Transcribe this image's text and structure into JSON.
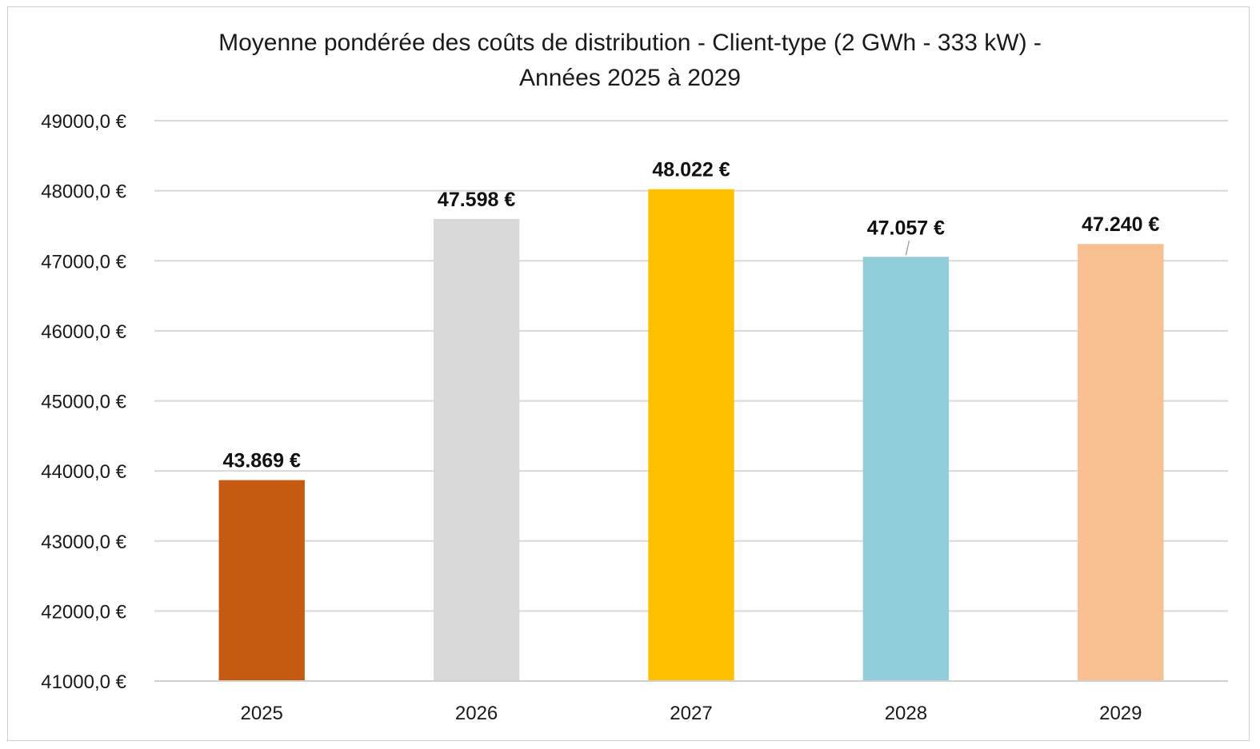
{
  "chart_data": {
    "type": "bar",
    "title_lines": [
      "Moyenne pondérée des coûts de distribution - Client-type (2 GWh - 333 kW) -",
      "Années 2025 à 2029"
    ],
    "categories": [
      "2025",
      "2026",
      "2027",
      "2028",
      "2029"
    ],
    "values": [
      43869,
      47598,
      48022,
      47057,
      47240
    ],
    "data_labels": [
      "43.869 €",
      "47.598 €",
      "48.022 €",
      "47.057 €",
      "47.240 €"
    ],
    "colors": [
      "#c55a11",
      "#d9d9d9",
      "#ffc000",
      "#92cddc",
      "#f8c090"
    ],
    "ylim": [
      41000,
      49000
    ],
    "y_ticks": [
      41000,
      42000,
      43000,
      44000,
      45000,
      46000,
      47000,
      48000,
      49000
    ],
    "y_tick_labels": [
      "41000,0 €",
      "42000,0 €",
      "43000,0 €",
      "44000,0 €",
      "45000,0 €",
      "46000,0 €",
      "47000,0 €",
      "48000,0 €",
      "49000,0 €"
    ],
    "grid": true,
    "gridline_color": "#d9d9d9",
    "legend": "none",
    "xlabel": "",
    "ylabel": ""
  }
}
